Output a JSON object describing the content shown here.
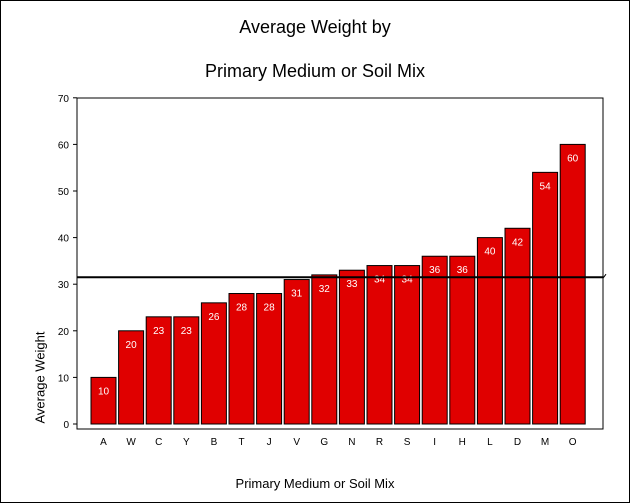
{
  "chart_data": {
    "type": "bar",
    "title_line1": "Average Weight by",
    "title_line2": "Primary Medium or Soil Mix",
    "xlabel": "Primary Medium or Soil Mix",
    "ylabel": "Average Weight",
    "categories": [
      "A",
      "W",
      "C",
      "Y",
      "B",
      "T",
      "J",
      "V",
      "G",
      "N",
      "R",
      "S",
      "I",
      "H",
      "L",
      "D",
      "M",
      "O"
    ],
    "values": [
      10,
      20,
      23,
      23,
      26,
      28,
      28,
      31,
      32,
      33,
      34,
      34,
      36,
      36,
      40,
      42,
      54,
      60
    ],
    "bar_labels": [
      "10",
      "20",
      "23",
      "23",
      "26",
      "28",
      "28",
      "31",
      "32",
      "33",
      "34",
      "34",
      "36",
      "36",
      "40",
      "42",
      "54",
      "60"
    ],
    "yticks": [
      0,
      10,
      20,
      30,
      40,
      50,
      60,
      70
    ],
    "ylim": [
      0,
      70
    ],
    "reference_line": 31.5,
    "grid": false,
    "legend": "none",
    "bar_color": "#e00000",
    "bar_edge_color": "#000000"
  }
}
